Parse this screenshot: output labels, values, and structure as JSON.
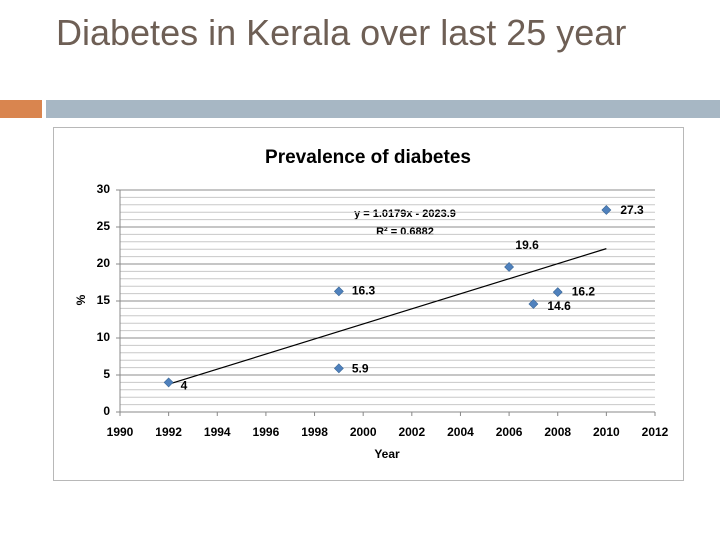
{
  "slide": {
    "title": "Diabetes in Kerala over last 25 year"
  },
  "chart_data": {
    "type": "scatter",
    "title": "Prevalence of diabetes",
    "x_label": "Year",
    "y_label": "%",
    "series": [
      {
        "color": "#4f81bd",
        "x": [
          1992,
          1999,
          1999,
          2006,
          2007,
          2008,
          2010
        ],
        "values": [
          4,
          16.3,
          5.9,
          19.6,
          14.6,
          16.2,
          27.3
        ]
      }
    ],
    "trendline": {
      "slope": 1.0179,
      "intercept": -2023.9,
      "x_range": [
        1992,
        2010
      ],
      "label": "y = 1.0179x - 2023.9",
      "r2_label": "R² = 0.6882"
    },
    "xlim": [
      1990,
      2012
    ],
    "xticks": [
      1990,
      1992,
      1994,
      1996,
      1998,
      2000,
      2002,
      2004,
      2006,
      2008,
      2010,
      2012
    ],
    "ylim": [
      0,
      30
    ],
    "yticks": [
      0,
      5,
      10,
      15,
      20,
      25,
      30
    ],
    "grid": true
  }
}
